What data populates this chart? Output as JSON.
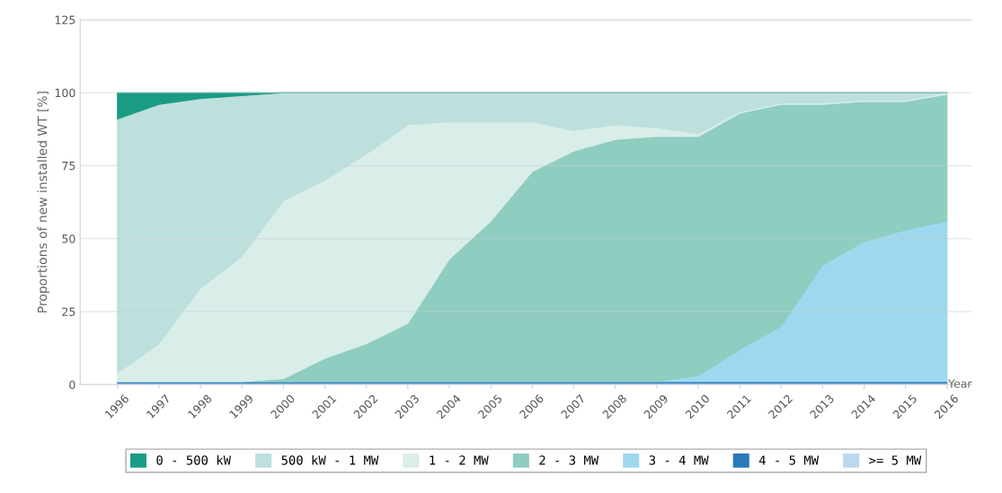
{
  "chart_data": {
    "type": "area",
    "stacked": true,
    "ylabel": "Proportions of new installed WT [%]",
    "xlabel": "Year",
    "categories": [
      "1996",
      "1997",
      "1998",
      "1999",
      "2000",
      "2001",
      "2002",
      "2003",
      "2004",
      "2005",
      "2006",
      "2007",
      "2008",
      "2009",
      "2010",
      "2011",
      "2012",
      "2013",
      "2014",
      "2015",
      "2016"
    ],
    "series": [
      {
        "name": ">= 5 MW",
        "color": "#bcd8f0",
        "values": [
          0.5,
          0.5,
          0.5,
          0.5,
          0.5,
          0.5,
          0.5,
          0.5,
          0.5,
          0.5,
          0.5,
          0.5,
          0.5,
          0.5,
          0.5,
          0.5,
          0.5,
          0.5,
          0.5,
          0.5,
          0.5
        ]
      },
      {
        "name": "4 - 5 MW",
        "color": "#2a7ab8",
        "values": [
          0.5,
          0.5,
          0.5,
          0.5,
          0.5,
          0.5,
          0.5,
          0.5,
          0.5,
          0.5,
          0.5,
          0.5,
          0.5,
          0.5,
          0.5,
          0.5,
          0.5,
          0.5,
          0.5,
          0.5,
          0.5
        ]
      },
      {
        "name": "3 - 4 MW",
        "color": "#9ed8ef",
        "values": [
          0,
          0,
          0,
          0,
          0,
          0,
          0,
          0,
          0,
          0,
          0,
          0,
          0,
          0,
          2,
          11,
          19,
          40,
          48,
          52,
          55
        ]
      },
      {
        "name": "2 - 3 MW",
        "color": "#8ecdc0",
        "values": [
          0,
          0,
          0,
          0,
          1,
          8,
          13,
          20,
          42,
          55,
          72,
          79,
          83,
          84,
          82,
          81,
          76,
          55,
          48,
          44,
          43.5
        ]
      },
      {
        "name": "1 - 2 MW",
        "color": "#d9ede9",
        "values": [
          3,
          13,
          32,
          43,
          61,
          61,
          65,
          68,
          47,
          34,
          17,
          7,
          5,
          3,
          1,
          0.5,
          0.5,
          0.5,
          0.5,
          0.5,
          0.5
        ]
      },
      {
        "name": "500 kW - 1 MW",
        "color": "#bde0dd",
        "values": [
          87,
          82,
          65,
          55,
          37,
          30,
          21,
          11,
          10,
          10,
          10,
          13,
          11,
          12,
          14,
          6.5,
          3.5,
          3.5,
          2.5,
          2.5,
          0
        ]
      },
      {
        "name": "0 - 500 kW",
        "color": "#1a9c84",
        "values": [
          9,
          4,
          2,
          1,
          0,
          0,
          0,
          0,
          0,
          0,
          0,
          0,
          0,
          0,
          0,
          0,
          0,
          0,
          0,
          0,
          0
        ]
      }
    ],
    "ylim": [
      0,
      125
    ],
    "yticks": [
      0,
      25,
      50,
      75,
      100,
      125
    ],
    "grid": "y",
    "legend": "bottom"
  }
}
